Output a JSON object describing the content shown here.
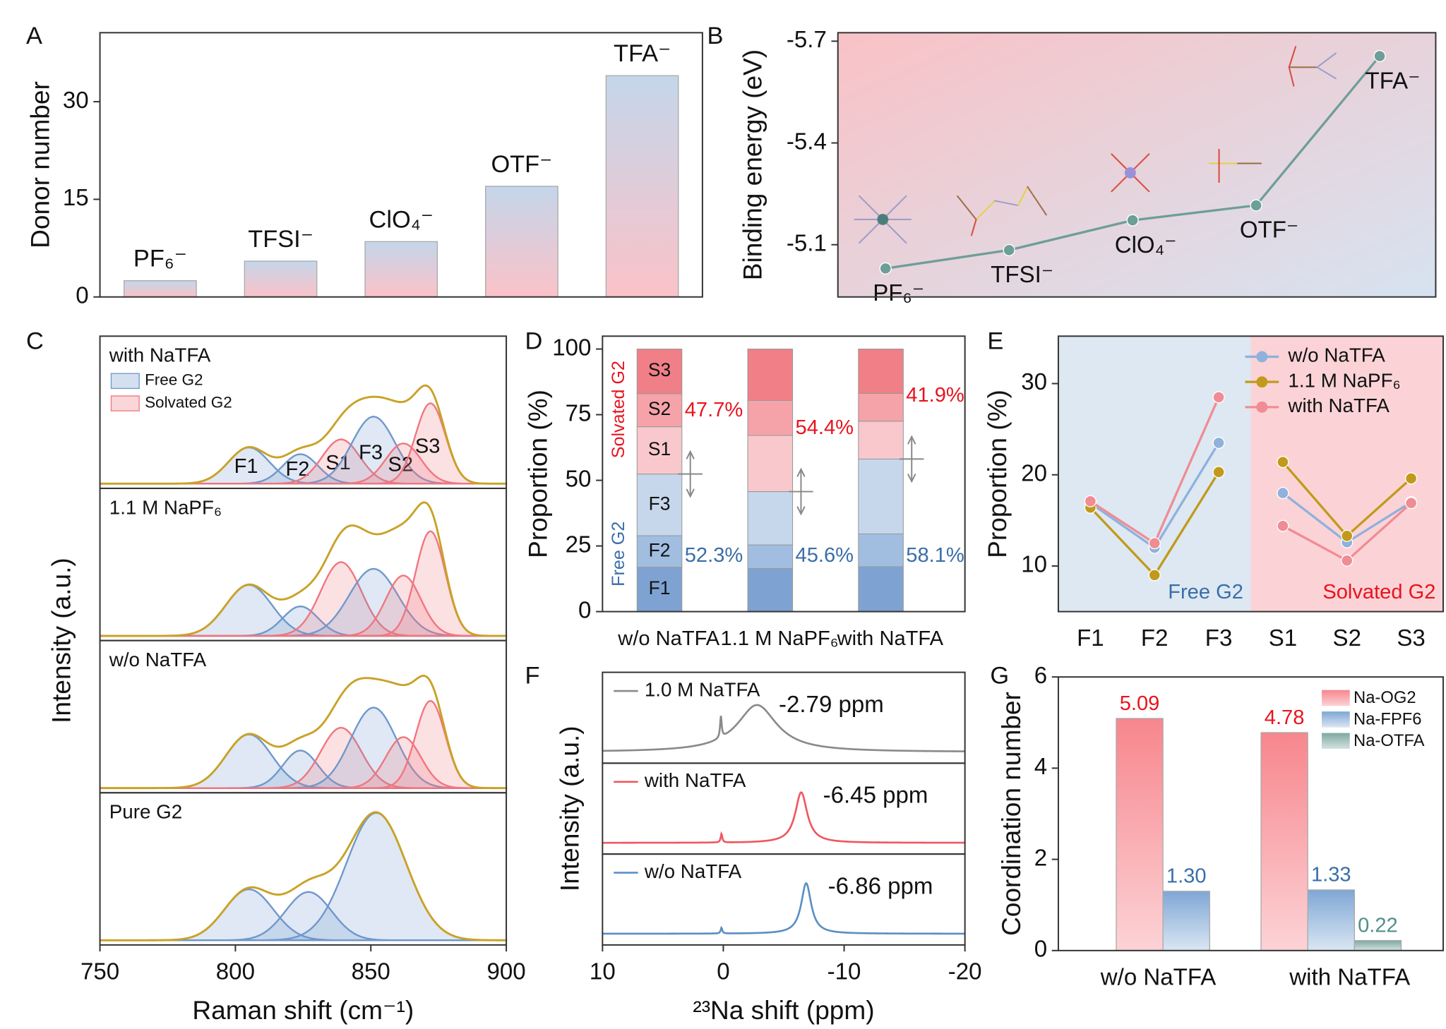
{
  "chart_data": [
    {
      "type": "bar",
      "panel": "A",
      "y_label": "Donor number",
      "categories": [
        "PF₆⁻",
        "TFSI⁻",
        "ClO₄⁻",
        "OTF⁻",
        "TFA⁻"
      ],
      "values": [
        2.5,
        5.5,
        8.5,
        17,
        34
      ],
      "gradient": [
        "#c4d6ea",
        "#fbc2c8"
      ],
      "ylim": [
        0,
        40.6
      ],
      "yticks": [
        0,
        15,
        30
      ]
    },
    {
      "type": "line",
      "panel": "B",
      "y_label": "Binding energy (eV)",
      "categories": [
        "PF₆⁻",
        "TFSI⁻",
        "ClO₄⁻",
        "OTF⁻",
        "TFA⁻"
      ],
      "values": [
        -5.03,
        -5.084,
        -5.172,
        -5.216,
        -5.656
      ],
      "color": "#6e9e98",
      "background": [
        "#f9c2c6",
        "#d6e3f0"
      ],
      "ylim": [
        -4.946,
        -5.725
      ],
      "yticks": [
        -5.7,
        -5.4,
        -5.1
      ]
    },
    {
      "type": "spectra",
      "panel": "C",
      "y_label": "Intensity (a.u.)",
      "x_label": "Raman shift (cm⁻¹)",
      "fit_color": "#c9a227",
      "legend": [
        {
          "name": "Free G2",
          "color": "#6f98cc"
        },
        {
          "name": "Solvated G2",
          "color": "#f0767f"
        }
      ],
      "xlim": [
        750,
        900
      ],
      "xticks": [
        750,
        800,
        850,
        900
      ],
      "ylim": [
        0,
        1.1
      ],
      "panels": [
        {
          "label": "with NaTFA",
          "components": [
            {
              "name": "F1",
              "center": 805,
              "height": 0.27,
              "width": 7.5,
              "color": "#6f98cc"
            },
            {
              "name": "F2",
              "center": 824,
              "height": 0.22,
              "width": 6.5,
              "color": "#6f98cc"
            },
            {
              "name": "S1",
              "center": 839,
              "height": 0.33,
              "width": 7,
              "color": "#f0767f"
            },
            {
              "name": "F3",
              "center": 851,
              "height": 0.5,
              "width": 8,
              "color": "#6f98cc"
            },
            {
              "name": "S2",
              "center": 862,
              "height": 0.3,
              "width": 6.5,
              "color": "#f0767f"
            },
            {
              "name": "S3",
              "center": 872,
              "height": 0.6,
              "width": 5.5,
              "color": "#f0767f"
            }
          ]
        },
        {
          "label": "1.1 M NaPF₆",
          "components": [
            {
              "center": 805,
              "height": 0.38,
              "width": 8.5,
              "color": "#6f98cc"
            },
            {
              "center": 824,
              "height": 0.22,
              "width": 6.5,
              "color": "#6f98cc"
            },
            {
              "center": 839,
              "height": 0.55,
              "width": 7.5,
              "color": "#f0767f"
            },
            {
              "center": 851,
              "height": 0.5,
              "width": 9,
              "color": "#6f98cc"
            },
            {
              "center": 862,
              "height": 0.45,
              "width": 6.5,
              "color": "#f0767f"
            },
            {
              "center": 872,
              "height": 0.78,
              "width": 5.5,
              "color": "#f0767f"
            }
          ]
        },
        {
          "label": "w/o NaTFA",
          "components": [
            {
              "center": 805,
              "height": 0.4,
              "width": 8.5,
              "color": "#6f98cc"
            },
            {
              "center": 824,
              "height": 0.28,
              "width": 6.5,
              "color": "#6f98cc"
            },
            {
              "center": 839,
              "height": 0.45,
              "width": 7.5,
              "color": "#f0767f"
            },
            {
              "center": 851,
              "height": 0.6,
              "width": 8.5,
              "color": "#6f98cc"
            },
            {
              "center": 862,
              "height": 0.38,
              "width": 6.5,
              "color": "#f0767f"
            },
            {
              "center": 872,
              "height": 0.65,
              "width": 5.5,
              "color": "#f0767f"
            }
          ]
        },
        {
          "label": "Pure G2",
          "components": [
            {
              "center": 805,
              "height": 0.38,
              "width": 9,
              "color": "#6f98cc"
            },
            {
              "center": 827,
              "height": 0.36,
              "width": 8.5,
              "color": "#6f98cc"
            },
            {
              "center": 852,
              "height": 0.95,
              "width": 11,
              "color": "#6f98cc"
            }
          ]
        }
      ]
    },
    {
      "type": "stacked-bar",
      "panel": "D",
      "y_label": "Proportion (%)",
      "categories": [
        "w/o NaTFA",
        "1.1 M NaPF₆",
        "with NaTFA"
      ],
      "series": [
        {
          "name": "F1",
          "color": "#7ea3d2",
          "values": [
            16.9,
            16.4,
            17.1
          ]
        },
        {
          "name": "F2",
          "color": "#a1bee1",
          "values": [
            12,
            9,
            12.5
          ]
        },
        {
          "name": "F3",
          "color": "#c6d7ec",
          "values": [
            23.5,
            20.3,
            28.5
          ]
        },
        {
          "name": "S1",
          "color": "#f9c8cc",
          "values": [
            18,
            21.4,
            14.4
          ]
        },
        {
          "name": "S2",
          "color": "#f5a3a9",
          "values": [
            12.6,
            13.3,
            10.6
          ]
        },
        {
          "name": "S3",
          "color": "#f07f88",
          "values": [
            17,
            19.6,
            16.9
          ]
        }
      ],
      "annotations": {
        "solvated": [
          "47.7%",
          "54.4%",
          "41.9%"
        ],
        "free": [
          "52.3%",
          "45.6%",
          "58.1%"
        ]
      },
      "group_labels": [
        {
          "label": "Solvated G2",
          "color": "#e8141e"
        },
        {
          "label": "Free G2",
          "color": "#3a6ea8"
        }
      ],
      "ylim": [
        0,
        104.9
      ],
      "yticks": [
        0,
        25,
        50,
        75,
        100
      ]
    },
    {
      "type": "grouped-line",
      "panel": "E",
      "y_label": "Proportion (%)",
      "groups": [
        {
          "label": "Free G2",
          "color": "#dde8f2",
          "label_color": "#3a6ea8",
          "categories": [
            "F1",
            "F2",
            "F3"
          ]
        },
        {
          "label": "Solvated G2",
          "color": "#fbd3d6",
          "label_color": "#e8141e",
          "categories": [
            "S1",
            "S2",
            "S3"
          ]
        }
      ],
      "series": [
        {
          "name": "w/o NaTFA",
          "color": "#8fb1dc",
          "values": [
            16.9,
            12,
            23.5,
            18,
            12.6,
            17
          ]
        },
        {
          "name": "1.1 M NaPF₆",
          "color": "#c19a1b",
          "values": [
            16.4,
            9,
            20.3,
            21.4,
            13.3,
            19.6
          ]
        },
        {
          "name": "with NaTFA",
          "color": "#f08c94",
          "values": [
            17.1,
            12.5,
            28.5,
            14.4,
            10.6,
            16.9
          ]
        }
      ],
      "ylim": [
        5,
        35.2
      ],
      "yticks": [
        10,
        20,
        30
      ]
    },
    {
      "type": "nmr",
      "panel": "F",
      "y_label": "Intensity (a.u.)",
      "x_label": "²³Na shift (ppm)",
      "xlim": [
        10,
        -20
      ],
      "xticks": [
        10,
        0,
        -10,
        -20
      ],
      "ylim": [
        0,
        1
      ],
      "panels": [
        {
          "label": "1.0 M NaTFA",
          "color": "#8a8a8a",
          "peaks": [
            {
              "center": 0.2,
              "height": 0.3,
              "width": 0.08
            },
            {
              "center": -2.79,
              "height": 0.65,
              "width": 2.0,
              "label": "-2.79 ppm"
            }
          ]
        },
        {
          "label": "with NaTFA",
          "color": "#f0575f",
          "peaks": [
            {
              "center": 0.15,
              "height": 0.12,
              "width": 0.08
            },
            {
              "center": -6.45,
              "height": 0.7,
              "width": 0.6,
              "label": "-6.45 ppm"
            }
          ]
        },
        {
          "label": "w/o NaTFA",
          "color": "#5b8fc2",
          "peaks": [
            {
              "center": 0.15,
              "height": 0.08,
              "width": 0.08
            },
            {
              "center": -6.86,
              "height": 0.7,
              "width": 0.5,
              "label": "-6.86 ppm"
            }
          ]
        }
      ]
    },
    {
      "type": "grouped-bar",
      "panel": "G",
      "y_label": "Coordination number",
      "categories": [
        "w/o NaTFA",
        "with NaTFA"
      ],
      "series": [
        {
          "name": "Na-OG2",
          "gradient": [
            "#f7868d",
            "#fcd3d6"
          ],
          "label_color": "#e8141e",
          "values": [
            5.09,
            4.78
          ],
          "value_labels": [
            "5.09",
            "4.78"
          ]
        },
        {
          "name": "Na-FPF6",
          "gradient": [
            "#7fa7d5",
            "#dae6f3"
          ],
          "label_color": "#3a6ea8",
          "values": [
            1.3,
            1.33
          ],
          "value_labels": [
            "1.30",
            "1.33"
          ]
        },
        {
          "name": "Na-OTFA",
          "gradient": [
            "#7fa8a3",
            "#d3e3e0"
          ],
          "label_color": "#4f8f8a",
          "values": [
            null,
            0.22
          ],
          "value_labels": [
            null,
            "0.22"
          ]
        }
      ],
      "ylim": [
        0,
        6
      ],
      "yticks": [
        0,
        2,
        4,
        6
      ]
    }
  ]
}
